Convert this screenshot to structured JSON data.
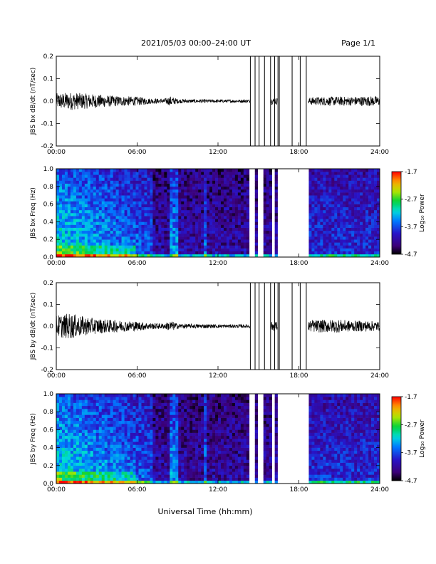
{
  "header": {
    "date_range": "2021/05/03  00:00–24:00 UT",
    "page": "Page 1/1"
  },
  "x_axis": {
    "label": "Universal Time (hh:mm)",
    "ticks": [
      "00:00",
      "06:00",
      "12:00",
      "18:00",
      "24:00"
    ]
  },
  "colorbar": {
    "label": "Log₁₀ Power",
    "ticks": [
      "-1.7",
      "-2.7",
      "-3.7",
      "-4.7"
    ]
  },
  "chart_data": [
    {
      "type": "line",
      "ylabel": "JBS bx dB/dt (nT/sec)",
      "xlim_hours": [
        0,
        24
      ],
      "ylim": [
        -0.2,
        0.2
      ],
      "yticks": [
        {
          "v": 0.2,
          "l": "0.2"
        },
        {
          "v": 0.1,
          "l": "0.1"
        },
        {
          "v": 0.0,
          "l": "0.0"
        },
        {
          "v": -0.1,
          "l": "-0.1"
        },
        {
          "v": -0.2,
          "l": "-0.2"
        }
      ],
      "x_hours": [
        0,
        1,
        2,
        3,
        4,
        5,
        6,
        7,
        8,
        8.5,
        9,
        10,
        11,
        12,
        13,
        14,
        14.4,
        15.9,
        18.7,
        19,
        20,
        21,
        22,
        23,
        24
      ],
      "envelope": [
        0.035,
        0.04,
        0.035,
        0.03,
        0.025,
        0.022,
        0.02,
        0.012,
        0.01,
        0.022,
        0.01,
        0.008,
        0.008,
        0.007,
        0.007,
        0.007,
        0.007,
        0.015,
        0.015,
        0.018,
        0.02,
        0.02,
        0.02,
        0.022,
        0.022
      ],
      "data_gaps_hours": [
        [
          14.4,
          15.9
        ],
        [
          16.4,
          18.7
        ]
      ],
      "spikes_hours": [
        14.4,
        14.75,
        15.05,
        15.45,
        15.9,
        16.2,
        16.45,
        16.55,
        17.5,
        18.1,
        18.55
      ]
    },
    {
      "type": "heatmap",
      "ylabel": "JBS bx Freq (Hz)",
      "xlim_hours": [
        0,
        24
      ],
      "ylim": [
        0.0,
        1.0
      ],
      "yticks": [
        {
          "v": 1.0,
          "l": "1.0"
        },
        {
          "v": 0.8,
          "l": "0.8"
        },
        {
          "v": 0.6,
          "l": "0.6"
        },
        {
          "v": 0.4,
          "l": "0.4"
        },
        {
          "v": 0.2,
          "l": "0.2"
        },
        {
          "v": 0.0,
          "l": "0.0"
        }
      ],
      "zlim": [
        -4.7,
        -1.7
      ],
      "data_gaps_hours": [
        [
          14.4,
          14.75
        ],
        [
          15.05,
          15.45
        ],
        [
          15.9,
          16.15
        ],
        [
          16.4,
          18.7
        ]
      ]
    },
    {
      "type": "line",
      "ylabel": "JBS by dB/dt (nT/sec)",
      "xlim_hours": [
        0,
        24
      ],
      "ylim": [
        -0.2,
        0.2
      ],
      "yticks": [
        {
          "v": 0.2,
          "l": "0.2"
        },
        {
          "v": 0.1,
          "l": "0.1"
        },
        {
          "v": 0.0,
          "l": "0.0"
        },
        {
          "v": -0.1,
          "l": "-0.1"
        },
        {
          "v": -0.2,
          "l": "-0.2"
        }
      ],
      "x_hours": [
        0,
        1,
        2,
        3,
        4,
        5,
        6,
        7,
        8,
        8.5,
        9,
        10,
        11,
        12,
        13,
        14,
        14.4,
        15.9,
        18.7,
        19,
        20,
        21,
        22,
        23,
        24
      ],
      "envelope": [
        0.05,
        0.06,
        0.045,
        0.035,
        0.03,
        0.025,
        0.022,
        0.015,
        0.012,
        0.025,
        0.012,
        0.01,
        0.01,
        0.008,
        0.008,
        0.008,
        0.008,
        0.02,
        0.025,
        0.028,
        0.03,
        0.03,
        0.025,
        0.025,
        0.022
      ],
      "data_gaps_hours": [
        [
          14.4,
          15.9
        ],
        [
          16.4,
          18.7
        ]
      ],
      "spikes_hours": [
        14.4,
        14.75,
        15.05,
        15.45,
        15.9,
        16.2,
        16.45,
        16.55,
        17.5,
        18.1,
        18.55
      ]
    },
    {
      "type": "heatmap",
      "ylabel": "JBS by Freq (Hz)",
      "xlim_hours": [
        0,
        24
      ],
      "ylim": [
        0.0,
        1.0
      ],
      "yticks": [
        {
          "v": 1.0,
          "l": "1.0"
        },
        {
          "v": 0.8,
          "l": "0.8"
        },
        {
          "v": 0.6,
          "l": "0.6"
        },
        {
          "v": 0.4,
          "l": "0.4"
        },
        {
          "v": 0.2,
          "l": "0.2"
        },
        {
          "v": 0.0,
          "l": "0.0"
        }
      ],
      "zlim": [
        -4.7,
        -1.7
      ],
      "data_gaps_hours": [
        [
          14.4,
          14.75
        ],
        [
          15.05,
          15.45
        ],
        [
          15.9,
          16.15
        ],
        [
          16.4,
          18.7
        ]
      ]
    }
  ]
}
